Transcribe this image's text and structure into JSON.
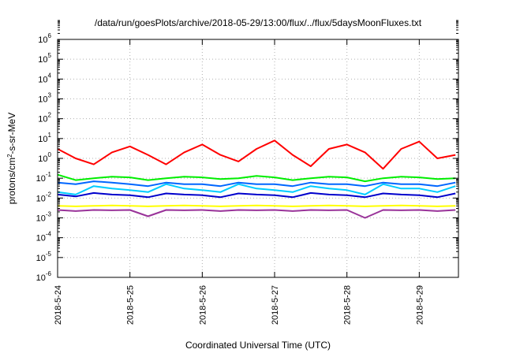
{
  "chart_data": {
    "type": "line",
    "title": "/data/run/goesPlots/archive/2018-05-29/13:00/flux/../flux/5daysMoonFluxes.txt",
    "xlabel": "Coordinated Universal Time (UTC)",
    "ylabel": "protons/cm²-s-sr-MeV",
    "ylabel_parts": {
      "pre": "protons/cm",
      "sup": "2",
      "post": "-s-sr-MeV"
    },
    "yscale": "log",
    "ylim": [
      1e-06,
      1000000.0
    ],
    "xlim": [
      "2018-05-24 00:00",
      "2018-05-29 13:00"
    ],
    "grid": true,
    "x_ticks": [
      "2018-5-24",
      "2018-5-25",
      "2018-5-26",
      "2018-5-27",
      "2018-5-28",
      "2018-5-29"
    ],
    "y_ticks": [
      {
        "base": "10",
        "exp": "6"
      },
      {
        "base": "10",
        "exp": "5"
      },
      {
        "base": "10",
        "exp": "4"
      },
      {
        "base": "10",
        "exp": "3"
      },
      {
        "base": "10",
        "exp": "2"
      },
      {
        "base": "10",
        "exp": "1"
      },
      {
        "base": "10",
        "exp": "0"
      },
      {
        "base": "10",
        "exp": "-1"
      },
      {
        "base": "10",
        "exp": "-2"
      },
      {
        "base": "10",
        "exp": "-3"
      },
      {
        "base": "10",
        "exp": "-4"
      },
      {
        "base": "10",
        "exp": "-5"
      },
      {
        "base": "10",
        "exp": "-6"
      }
    ],
    "x": [
      "2018-05-24 00:00",
      "2018-05-24 06:00",
      "2018-05-24 12:00",
      "2018-05-24 18:00",
      "2018-05-25 00:00",
      "2018-05-25 06:00",
      "2018-05-25 12:00",
      "2018-05-25 18:00",
      "2018-05-26 00:00",
      "2018-05-26 06:00",
      "2018-05-26 12:00",
      "2018-05-26 18:00",
      "2018-05-27 00:00",
      "2018-05-27 06:00",
      "2018-05-27 12:00",
      "2018-05-27 18:00",
      "2018-05-28 00:00",
      "2018-05-28 06:00",
      "2018-05-28 12:00",
      "2018-05-28 18:00",
      "2018-05-29 00:00",
      "2018-05-29 06:00",
      "2018-05-29 12:00"
    ],
    "series": [
      {
        "color": "#ff0000",
        "values": [
          3,
          1,
          0.5,
          2,
          4,
          1.5,
          0.5,
          2,
          5,
          1.5,
          0.7,
          3,
          8,
          1.5,
          0.4,
          3,
          5,
          2,
          0.3,
          3,
          7,
          1,
          1.5
        ]
      },
      {
        "color": "#00ee00",
        "values": [
          0.15,
          0.08,
          0.1,
          0.12,
          0.11,
          0.08,
          0.1,
          0.12,
          0.11,
          0.09,
          0.1,
          0.13,
          0.11,
          0.08,
          0.1,
          0.12,
          0.11,
          0.07,
          0.1,
          0.12,
          0.11,
          0.09,
          0.1
        ]
      },
      {
        "color": "#00ccff",
        "values": [
          0.02,
          0.015,
          0.04,
          0.03,
          0.025,
          0.02,
          0.05,
          0.03,
          0.025,
          0.02,
          0.05,
          0.03,
          0.025,
          0.02,
          0.04,
          0.03,
          0.025,
          0.015,
          0.05,
          0.03,
          0.03,
          0.02,
          0.04
        ]
      },
      {
        "color": "#0066ff",
        "values": [
          0.06,
          0.05,
          0.07,
          0.06,
          0.05,
          0.04,
          0.06,
          0.05,
          0.05,
          0.04,
          0.06,
          0.05,
          0.05,
          0.04,
          0.06,
          0.05,
          0.05,
          0.04,
          0.06,
          0.05,
          0.05,
          0.04,
          0.06
        ]
      },
      {
        "color": "#0000cc",
        "values": [
          0.015,
          0.012,
          0.018,
          0.015,
          0.014,
          0.011,
          0.017,
          0.015,
          0.014,
          0.011,
          0.017,
          0.015,
          0.014,
          0.011,
          0.018,
          0.015,
          0.014,
          0.011,
          0.017,
          0.015,
          0.014,
          0.011,
          0.017
        ]
      },
      {
        "color": "#ffff00",
        "values": [
          0.004,
          0.0038,
          0.004,
          0.0042,
          0.004,
          0.0038,
          0.004,
          0.0042,
          0.004,
          0.0038,
          0.004,
          0.0042,
          0.004,
          0.0038,
          0.004,
          0.0042,
          0.004,
          0.0038,
          0.004,
          0.0042,
          0.004,
          0.0038,
          0.004
        ]
      },
      {
        "color": "#993399",
        "values": [
          0.0025,
          0.0022,
          0.0025,
          0.0024,
          0.0025,
          0.0012,
          0.0025,
          0.0024,
          0.0025,
          0.0022,
          0.0025,
          0.0024,
          0.0025,
          0.0022,
          0.0025,
          0.0024,
          0.0025,
          0.001,
          0.0025,
          0.0024,
          0.0025,
          0.0022,
          0.0025
        ]
      }
    ]
  }
}
